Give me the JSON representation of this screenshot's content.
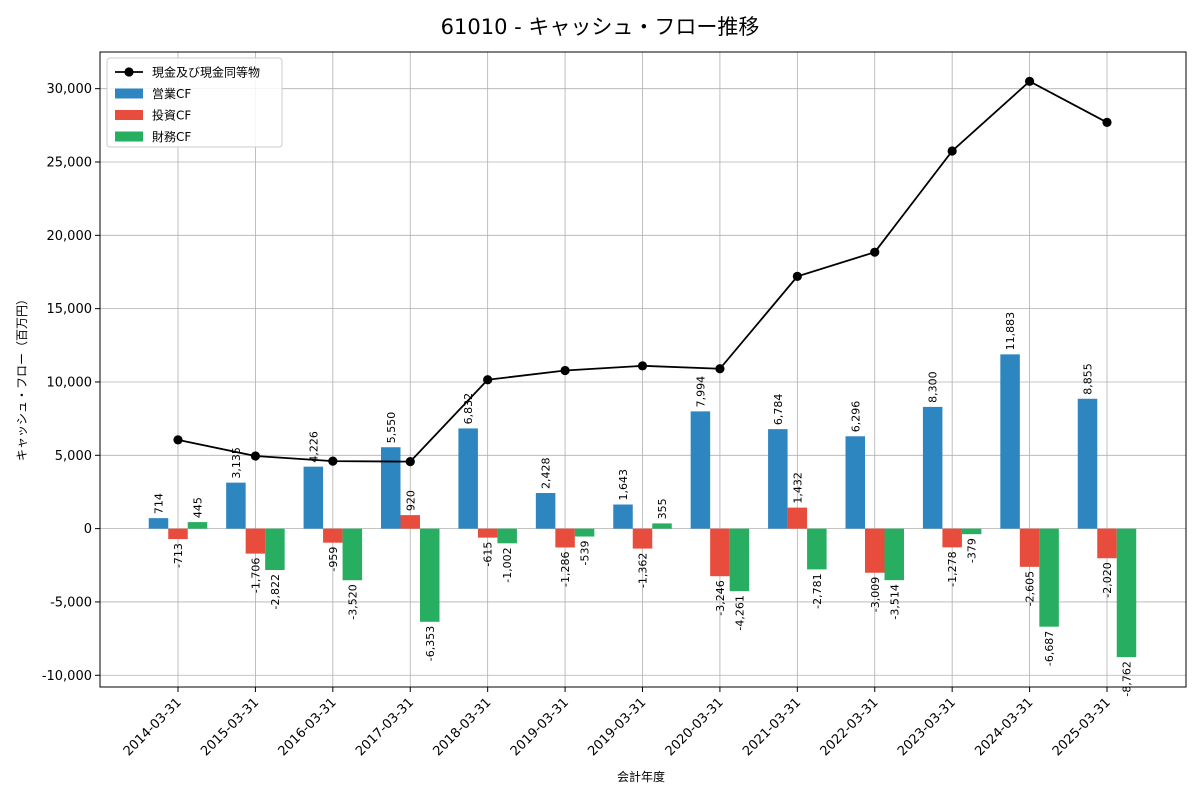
{
  "chart_data": {
    "type": "bar",
    "title": "61010 - キャッシュ・フロー推移",
    "xlabel": "会計年度",
    "ylabel": "キャッシュ・フロー（百万円）",
    "ylim": [
      -10800,
      32500
    ],
    "yticks": [
      -10000,
      -5000,
      0,
      5000,
      10000,
      15000,
      20000,
      25000,
      30000
    ],
    "ytick_labels": [
      "-10,000",
      "-5,000",
      "0",
      "5,000",
      "10,000",
      "15,000",
      "20,000",
      "25,000",
      "30,000"
    ],
    "grid": true,
    "legend_position": "top-left",
    "categories": [
      "2014-03-31",
      "2015-03-31",
      "2016-03-31",
      "2017-03-31",
      "2018-03-31",
      "2019-03-31",
      "2019-03-31",
      "2020-03-31",
      "2021-03-31",
      "2022-03-31",
      "2023-03-31",
      "2024-03-31",
      "2025-03-31"
    ],
    "series": [
      {
        "name": "営業CF",
        "kind": "bar",
        "color": "#2e86c1",
        "values": [
          714,
          3135,
          4226,
          5550,
          6832,
          2428,
          1643,
          7994,
          6784,
          6296,
          8300,
          11883,
          8855
        ],
        "labels": [
          "714",
          "3,135",
          "4,226",
          "5,550",
          "6,832",
          "2,428",
          "1,643",
          "7,994",
          "6,784",
          "6,296",
          "8,300",
          "11,883",
          "8,855"
        ]
      },
      {
        "name": "投資CF",
        "kind": "bar",
        "color": "#e74c3c",
        "values": [
          -713,
          -1706,
          -959,
          920,
          -615,
          -1286,
          -1362,
          -3246,
          1432,
          -3009,
          -1278,
          -2605,
          -2020
        ],
        "labels": [
          "-713",
          "-1,706",
          "-959",
          "920",
          "-615",
          "-1,286",
          "-1,362",
          "-3,246",
          "1,432",
          "-3,009",
          "-1,278",
          "-2,605",
          "-2,020"
        ]
      },
      {
        "name": "財務CF",
        "kind": "bar",
        "color": "#27ae60",
        "values": [
          445,
          -2822,
          -3520,
          -6353,
          -1002,
          -539,
          355,
          -4261,
          -2781,
          -3514,
          -379,
          -6687,
          -8762
        ],
        "labels": [
          "445",
          "-2,822",
          "-3,520",
          "-6,353",
          "-1,002",
          "-539",
          "355",
          "-4,261",
          "-2,781",
          "-3,514",
          "-379",
          "-6,687",
          "-8,762"
        ]
      },
      {
        "name": "現金及び現金同等物",
        "kind": "line",
        "color": "#000000",
        "values": [
          6050,
          4950,
          4600,
          4570,
          10150,
          10780,
          11100,
          10900,
          17200,
          18850,
          25750,
          30500,
          27700
        ]
      }
    ]
  }
}
